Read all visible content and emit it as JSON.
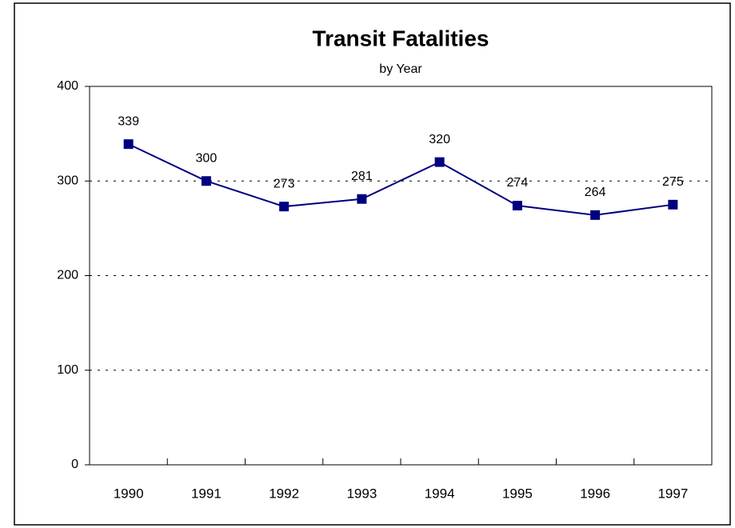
{
  "chart_data": {
    "type": "line",
    "title": "Transit Fatalities",
    "subtitle": "by Year",
    "categories": [
      "1990",
      "1991",
      "1992",
      "1993",
      "1994",
      "1995",
      "1996",
      "1997"
    ],
    "series": [
      {
        "name": "Transit Fatalities",
        "color": "#000080",
        "values": [
          339,
          300,
          273,
          281,
          320,
          274,
          264,
          275
        ]
      }
    ],
    "ylim": [
      0,
      400
    ],
    "yticks": [
      0,
      100,
      200,
      300,
      400
    ],
    "grid": true
  }
}
